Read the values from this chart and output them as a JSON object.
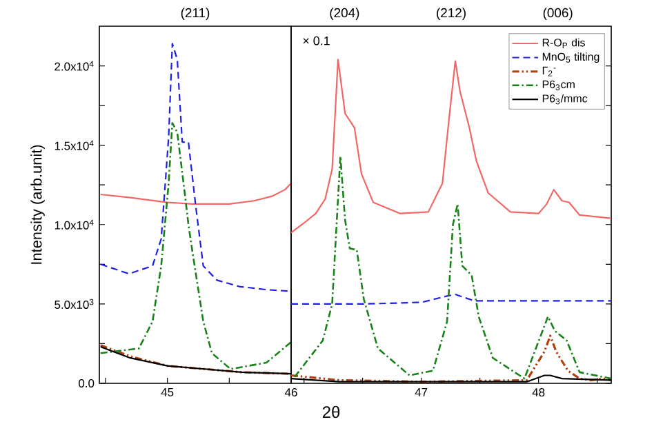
{
  "chart_data": [
    {
      "type": "line",
      "ylabel": "Intensity (arb.unit)",
      "annotations": [
        "(211)"
      ],
      "xlim": [
        44.45,
        46
      ],
      "xticks": [
        {
          "value": 44.5,
          "label": null
        },
        45,
        {
          "value": 45.5,
          "label": null
        },
        46
      ],
      "ylim": [
        0,
        22500
      ],
      "yticks": [
        {
          "value": 0,
          "label": "0.0"
        },
        {
          "value": 2500,
          "label": null
        },
        {
          "value": 5000,
          "label": "5.0x10$^{3}$"
        },
        {
          "value": 7500,
          "label": null
        },
        {
          "value": 10000,
          "label": "1.0x10$^{4}$"
        },
        {
          "value": 12500,
          "label": null
        },
        {
          "value": 15000,
          "label": "1.5x10$^{4}$"
        },
        {
          "value": 17500,
          "label": null
        },
        {
          "value": 20000,
          "label": "2.0x10$^{4}$"
        }
      ],
      "legend": false,
      "series": [
        {
          "color": "#f26666",
          "line_style": "solid",
          "x": [
            44.46,
            44.7,
            45.0,
            45.2,
            45.5,
            45.7,
            45.85,
            45.95,
            46.0
          ],
          "values": [
            11900,
            11700,
            11400,
            11300,
            11300,
            11500,
            11800,
            12200,
            12600
          ]
        },
        {
          "color": "#1f1fe6",
          "line_style": "dashed",
          "x": [
            44.46,
            44.69,
            44.88,
            44.95,
            45.01,
            45.04,
            45.08,
            45.12,
            45.17,
            45.23,
            45.29,
            45.4,
            45.58,
            45.8,
            46.0
          ],
          "values": [
            7500,
            6900,
            7400,
            9100,
            15500,
            21400,
            20400,
            15200,
            15200,
            11100,
            7400,
            6500,
            6100,
            5900,
            5800
          ]
        },
        {
          "color": "#b0400f",
          "line_style": "dashdotdot",
          "x": [
            44.46,
            44.7,
            45.0,
            45.3,
            45.6,
            46.0
          ],
          "values": [
            2400,
            1700,
            1100,
            900,
            700,
            600
          ]
        },
        {
          "color": "#1a801a",
          "line_style": "dashdot",
          "x": [
            44.46,
            44.77,
            44.88,
            44.95,
            45.01,
            45.04,
            45.08,
            45.14,
            45.17,
            45.21,
            45.29,
            45.36,
            45.51,
            45.8,
            46.0
          ],
          "values": [
            1900,
            2200,
            3900,
            7400,
            12600,
            16400,
            15800,
            12000,
            10000,
            7900,
            3900,
            1900,
            900,
            1300,
            2600
          ]
        },
        {
          "color": "#000000",
          "line_style": "solid",
          "x": [
            44.46,
            44.7,
            45.0,
            45.3,
            45.6,
            46.0
          ],
          "values": [
            2300,
            1600,
            1100,
            900,
            700,
            600
          ]
        }
      ]
    },
    {
      "type": "line",
      "xlabel": "2θ",
      "subtitle": "× 0.1",
      "annotations": [
        "(204)",
        "(212)",
        "(006)"
      ],
      "xlim": [
        45.89,
        48.62
      ],
      "xticks": [
        {
          "value": 46,
          "label": null
        },
        {
          "value": 46.5,
          "label": null
        },
        47,
        {
          "value": 47.5,
          "label": null
        },
        48,
        {
          "value": 48.5,
          "label": null
        }
      ],
      "ylim": [
        0,
        22500
      ],
      "yticks": [
        0,
        2500,
        5000,
        7500,
        10000,
        12500,
        15000,
        17500,
        20000
      ],
      "tick_labels": "x",
      "legend": "top right",
      "series": [
        {
          "name": "R-O$_{P}$ dis",
          "color": "#f26666",
          "line_style": "solid",
          "x": [
            45.89,
            46.0,
            46.1,
            46.18,
            46.24,
            46.29,
            46.35,
            46.43,
            46.49,
            46.59,
            46.82,
            47.06,
            47.18,
            47.24,
            47.29,
            47.33,
            47.41,
            47.47,
            47.57,
            47.76,
            48.0,
            48.07,
            48.13,
            48.2,
            48.26,
            48.35,
            48.62
          ],
          "values": [
            9500,
            10100,
            10700,
            11600,
            13500,
            20400,
            17000,
            16100,
            13200,
            11400,
            10700,
            10800,
            12600,
            16900,
            20300,
            18400,
            16100,
            14000,
            12000,
            10800,
            10700,
            11300,
            12200,
            11500,
            11400,
            10600,
            10400
          ]
        },
        {
          "name": "MnO$_{5}$ tilting",
          "color": "#1f1fe6",
          "line_style": "dashed",
          "x": [
            45.89,
            46.5,
            47.0,
            47.22,
            47.29,
            47.45,
            48.0,
            48.62
          ],
          "values": [
            5000,
            5000,
            5100,
            5500,
            5600,
            5200,
            5200,
            5200
          ]
        },
        {
          "name": "Γ$_{2}$$^{-}$",
          "color": "#b0400f",
          "line_style": "dashdotdot",
          "x": [
            45.89,
            46.3,
            47.0,
            47.9,
            48.05,
            48.1,
            48.15,
            48.25,
            48.35,
            48.45,
            48.55,
            48.62
          ],
          "values": [
            500,
            200,
            100,
            200,
            2000,
            3000,
            2000,
            800,
            300,
            200,
            300,
            200
          ]
        },
        {
          "name": "P6$_{3}$cm",
          "color": "#1a801a",
          "line_style": "dashdot",
          "x": [
            45.92,
            46.16,
            46.24,
            46.31,
            46.35,
            46.39,
            46.45,
            46.51,
            46.63,
            46.9,
            47.1,
            47.22,
            47.27,
            47.31,
            47.35,
            47.43,
            47.49,
            47.61,
            47.88,
            48.08,
            48.14,
            48.24,
            48.35,
            48.62
          ],
          "values": [
            400,
            2700,
            5000,
            14300,
            10300,
            8500,
            8400,
            5300,
            2200,
            500,
            800,
            3900,
            10000,
            11300,
            7400,
            6800,
            4200,
            1600,
            300,
            4200,
            3300,
            2700,
            700,
            300
          ]
        },
        {
          "name": "P6$_{3}$/mmc",
          "color": "#000000",
          "line_style": "solid",
          "x": [
            45.89,
            46.3,
            47.0,
            47.9,
            48.05,
            48.1,
            48.2,
            48.62
          ],
          "values": [
            300,
            100,
            100,
            100,
            500,
            500,
            300,
            200
          ]
        }
      ]
    }
  ]
}
